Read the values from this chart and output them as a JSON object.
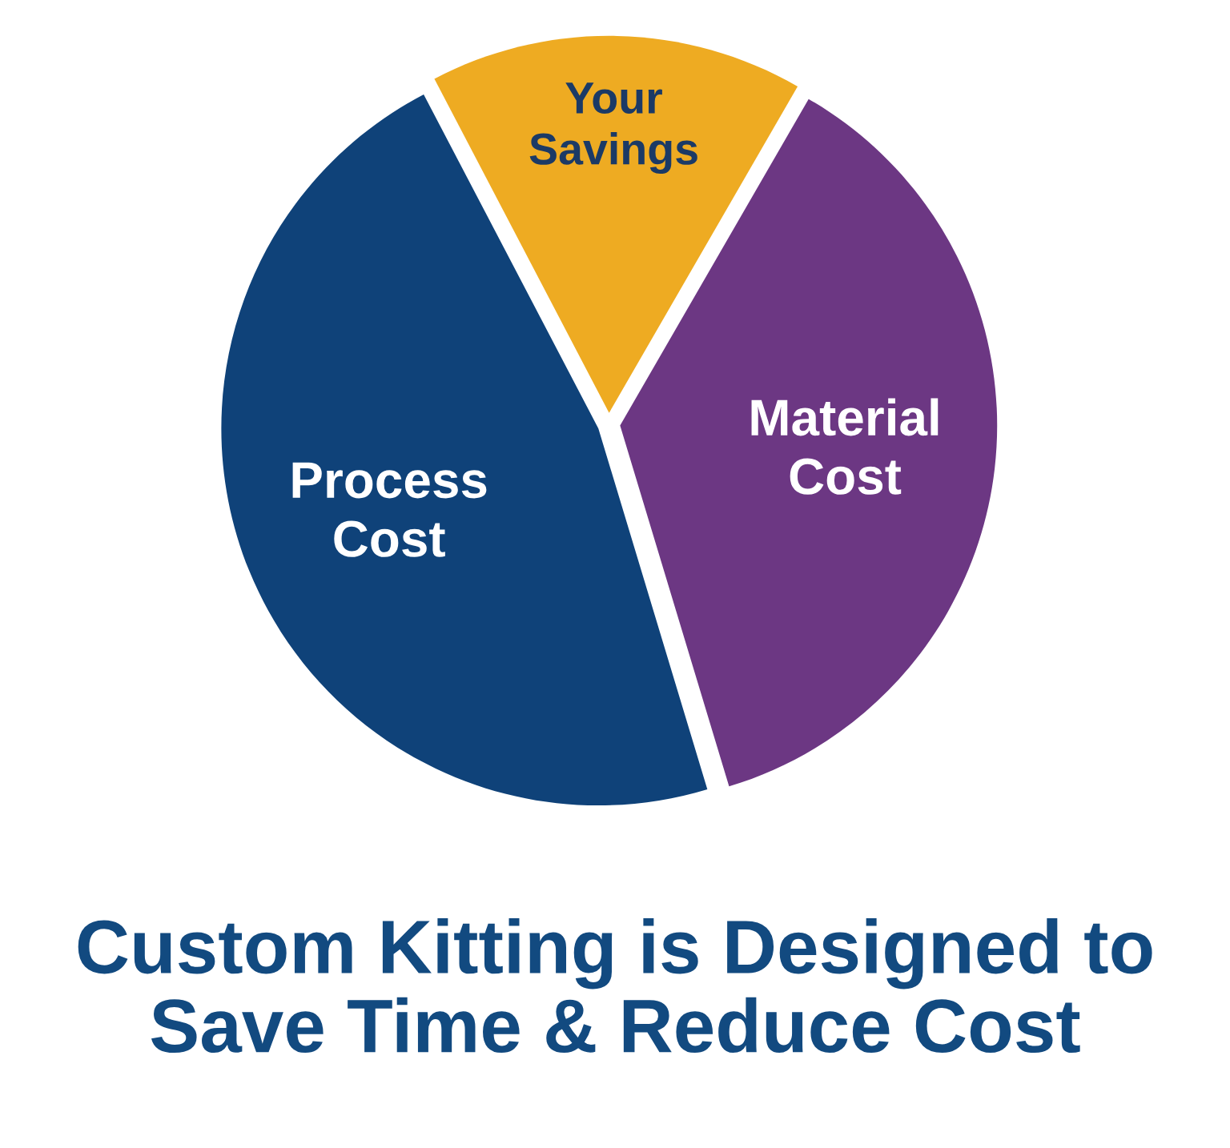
{
  "chart_data": {
    "type": "pie",
    "title": "Custom Kitting is Designed to Save Time & Reduce Cost",
    "categories": [
      "Your\nSavings",
      "Material\nCost",
      "Process\nCost"
    ],
    "values": [
      16,
      37,
      47
    ],
    "colors": [
      "#eeab22",
      "#6c3783",
      "#0f4279"
    ]
  }
}
